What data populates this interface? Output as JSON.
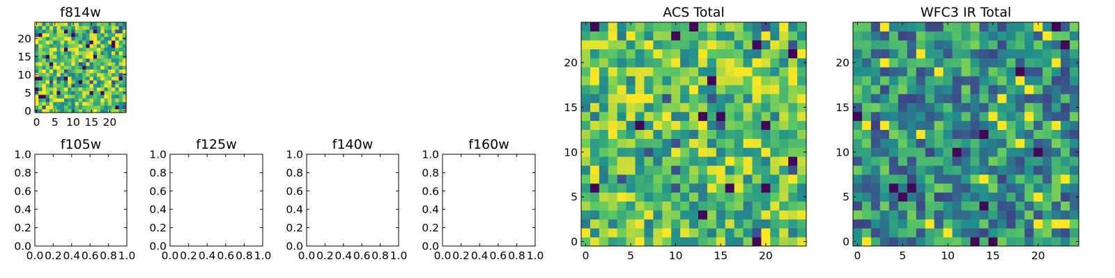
{
  "chart_data": [
    {
      "type": "heatmap",
      "title": "f814w",
      "xlim": [
        -0.5,
        24.5
      ],
      "ylim": [
        -0.5,
        24.5
      ],
      "xticks": [
        0,
        5,
        10,
        15,
        20
      ],
      "yticks": [
        0,
        5,
        10,
        15,
        20
      ],
      "grid_size": [
        25,
        25
      ],
      "colormap": [
        "#440154",
        "#3b528b",
        "#21918c",
        "#5ec962",
        "#fde725"
      ],
      "seed": 814,
      "bias": 0.72
    },
    {
      "type": "empty",
      "title": "f105w",
      "xlim": [
        0.0,
        1.0
      ],
      "ylim": [
        0.0,
        1.0
      ],
      "xticks": [
        "0.0",
        "0.2",
        "0.4",
        "0.6",
        "0.8",
        "1.0"
      ],
      "yticks": [
        "0.0",
        "0.2",
        "0.4",
        "0.6",
        "0.8",
        "1.0"
      ]
    },
    {
      "type": "empty",
      "title": "f125w",
      "xlim": [
        0.0,
        1.0
      ],
      "ylim": [
        0.0,
        1.0
      ],
      "xticks": [
        "0.0",
        "0.2",
        "0.4",
        "0.6",
        "0.8",
        "1.0"
      ],
      "yticks": [
        "0.0",
        "0.2",
        "0.4",
        "0.6",
        "0.8",
        "1.0"
      ]
    },
    {
      "type": "empty",
      "title": "f140w",
      "xlim": [
        0.0,
        1.0
      ],
      "ylim": [
        0.0,
        1.0
      ],
      "xticks": [
        "0.0",
        "0.2",
        "0.4",
        "0.6",
        "0.8",
        "1.0"
      ],
      "yticks": [
        "0.0",
        "0.2",
        "0.4",
        "0.6",
        "0.8",
        "1.0"
      ]
    },
    {
      "type": "empty",
      "title": "f160w",
      "xlim": [
        0.0,
        1.0
      ],
      "ylim": [
        0.0,
        1.0
      ],
      "xticks": [
        "0.0",
        "0.2",
        "0.4",
        "0.6",
        "0.8",
        "1.0"
      ],
      "yticks": [
        "0.0",
        "0.2",
        "0.4",
        "0.6",
        "0.8",
        "1.0"
      ]
    },
    {
      "type": "heatmap",
      "title": "ACS Total",
      "xlim": [
        -0.5,
        24.5
      ],
      "ylim": [
        -0.5,
        24.5
      ],
      "xticks": [
        0,
        5,
        10,
        15,
        20
      ],
      "yticks": [
        0,
        5,
        10,
        15,
        20
      ],
      "grid_size": [
        25,
        25
      ],
      "colormap": [
        "#440154",
        "#3b528b",
        "#21918c",
        "#5ec962",
        "#fde725"
      ],
      "seed": 4242,
      "bias": 0.7
    },
    {
      "type": "heatmap",
      "title": "WFC3 IR Total",
      "xlim": [
        -0.5,
        24.5
      ],
      "ylim": [
        -0.5,
        24.5
      ],
      "xticks": [
        0,
        5,
        10,
        15,
        20
      ],
      "yticks": [
        0,
        5,
        10,
        15,
        20
      ],
      "grid_size": [
        25,
        25
      ],
      "colormap": [
        "#440154",
        "#3b528b",
        "#21918c",
        "#5ec962",
        "#fde725"
      ],
      "seed": 1313,
      "bias": 0.5
    }
  ]
}
